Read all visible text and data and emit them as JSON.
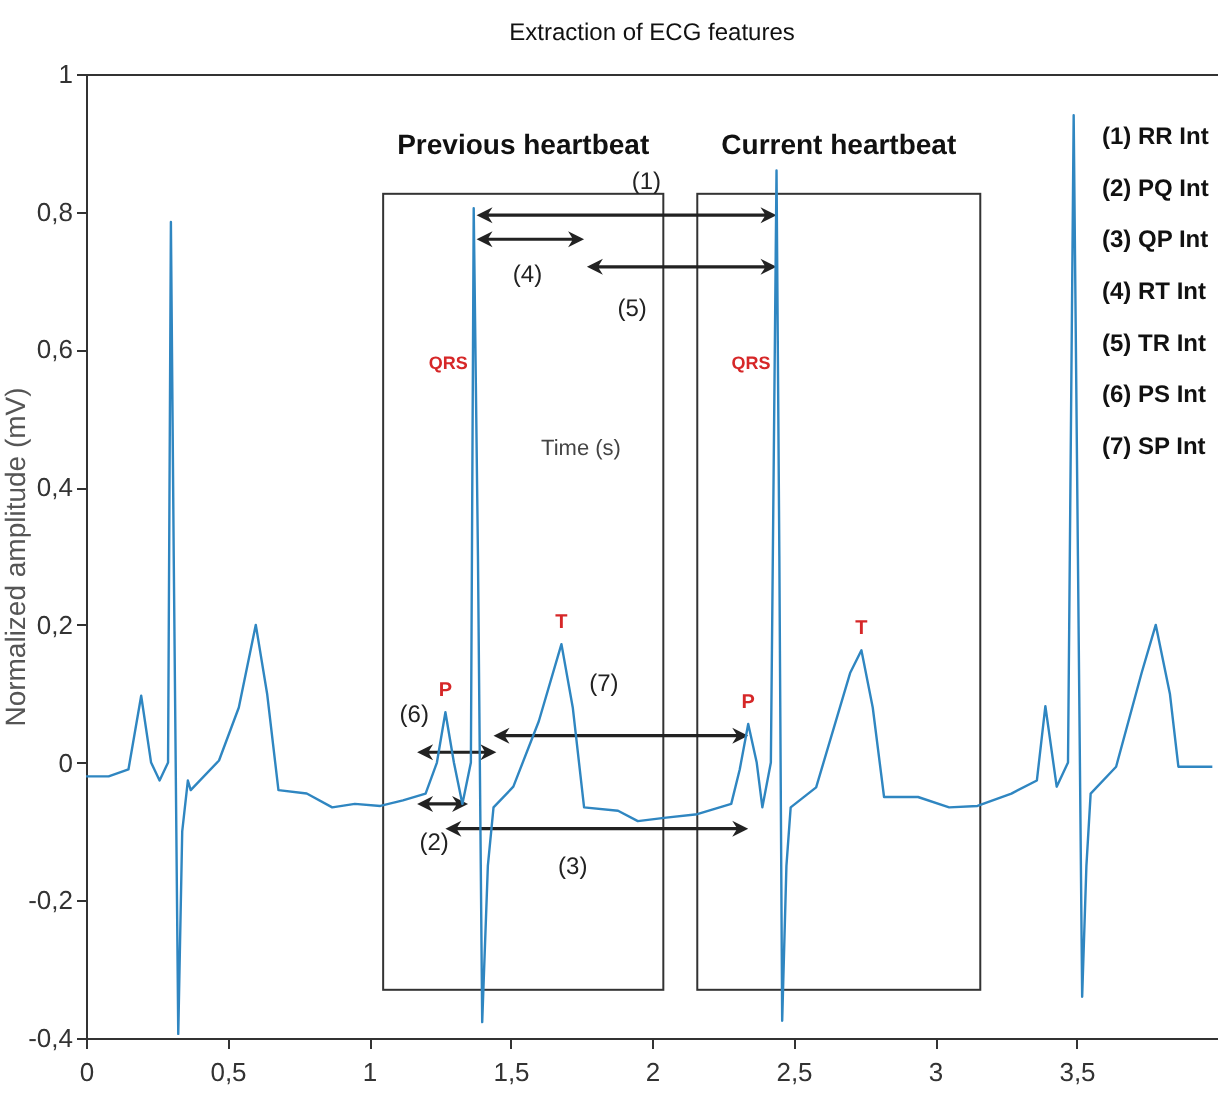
{
  "chart_data": {
    "type": "line",
    "title": "Extraction of ECG features",
    "xlabel": "Time (s)",
    "ylabel": "Normalized amplitude (mV)",
    "x": [
      0,
      0.08,
      0.15,
      0.195,
      0.23,
      0.26,
      0.29,
      0.3,
      0.31,
      0.326,
      0.34,
      0.36,
      0.37,
      0.47,
      0.54,
      0.6,
      0.64,
      0.68,
      0.78,
      0.87,
      0.95,
      1.04,
      1.12,
      1.2,
      1.24,
      1.27,
      1.3,
      1.33,
      1.36,
      1.37,
      1.385,
      1.4,
      1.42,
      1.44,
      1.51,
      1.6,
      1.68,
      1.72,
      1.76,
      1.88,
      1.95,
      2.05,
      2.16,
      2.28,
      2.31,
      2.34,
      2.37,
      2.39,
      2.42,
      2.44,
      2.45,
      2.46,
      2.475,
      2.49,
      2.58,
      2.7,
      2.74,
      2.78,
      2.82,
      2.94,
      3.05,
      3.15,
      3.27,
      3.36,
      3.39,
      3.43,
      3.47,
      3.49,
      3.505,
      3.52,
      3.535,
      3.55,
      3.64,
      3.73,
      3.78,
      3.83,
      3.86,
      3.98
    ],
    "series": [
      {
        "color": "#2f86c1",
        "values": [
          -0.02,
          -0.02,
          -0.01,
          0.097,
          0.0,
          -0.026,
          0.0,
          0.785,
          0.3,
          -0.394,
          -0.1,
          -0.026,
          -0.04,
          0.003,
          0.08,
          0.2,
          0.1,
          -0.04,
          -0.045,
          -0.065,
          -0.06,
          -0.063,
          -0.055,
          -0.045,
          0.0,
          0.073,
          0.0,
          -0.06,
          0.0,
          0.805,
          0.3,
          -0.377,
          -0.15,
          -0.065,
          -0.035,
          0.06,
          0.172,
          0.08,
          -0.065,
          -0.07,
          -0.085,
          -0.08,
          -0.075,
          -0.06,
          -0.01,
          0.056,
          0.0,
          -0.065,
          0.0,
          0.86,
          0.3,
          -0.375,
          -0.15,
          -0.065,
          -0.036,
          0.13,
          0.163,
          0.08,
          -0.05,
          -0.05,
          -0.065,
          -0.063,
          -0.045,
          -0.026,
          0.082,
          -0.035,
          0.0,
          0.94,
          0.3,
          -0.34,
          -0.15,
          -0.045,
          -0.006,
          0.13,
          0.2,
          0.1,
          -0.006,
          -0.006
        ]
      }
    ],
    "xlim": [
      0,
      4
    ],
    "xticks": [
      0,
      {
        "value": 0.5,
        "label": "0,5"
      },
      1,
      {
        "value": 1.5,
        "label": "1,5"
      },
      2,
      {
        "value": 2.5,
        "label": "2,5"
      },
      3,
      {
        "value": 3.5,
        "label": "3,5"
      }
    ],
    "ylim": [
      -0.4,
      1
    ],
    "yticks": [
      {
        "value": -0.4,
        "label": "-0,4"
      },
      {
        "value": -0.2,
        "label": "-0,2"
      },
      0,
      {
        "value": 0.2,
        "label": "0,2"
      },
      {
        "value": 0.4,
        "label": "0,4"
      },
      {
        "value": 0.6,
        "label": "0,6"
      },
      {
        "value": 0.8,
        "label": "0,8"
      },
      1
    ],
    "annotations": [
      "(1)",
      "(2)",
      "(3)",
      "(4)",
      "(5)",
      "(6)",
      "(7)",
      "(1) RR Int",
      "(2) PQ Int",
      "(3) QP Int",
      "(4) RT Int",
      "(5) TR Int",
      "(6) PS Int",
      "(7) SP Int",
      "Previous heartbeat",
      "Current heartbeat",
      "QRS",
      "QRS",
      {
        "text": "P",
        "x": 1.27,
        "y": 0.073
      },
      {
        "text": "T",
        "x": 1.68,
        "y": 0.172
      },
      {
        "text": "P",
        "x": 2.34,
        "y": 0.056
      },
      {
        "text": "T",
        "x": 2.74,
        "y": 0.163
      }
    ],
    "grid": false,
    "marker": "none",
    "line_style": "solid"
  }
}
